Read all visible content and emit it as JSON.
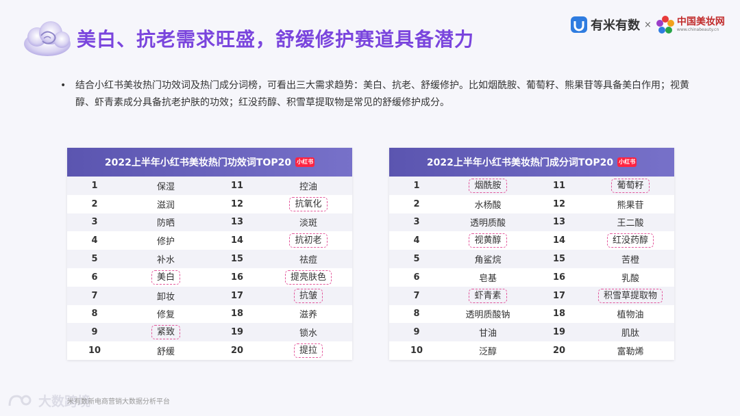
{
  "header": {
    "title": "美白、抗老需求旺盛，舒缓修护赛道具备潜力",
    "logo_youmi": "有米有数",
    "logo_sep": "×",
    "logo_chinabeauty": "中国美妆网",
    "logo_chinabeauty_url": "www.chinabeauty.cn"
  },
  "bullet": {
    "marker": "•",
    "text": "结合小红书美妆热门功效词及热门成分词榜，可看出三大需求趋势：美白、抗老、舒缓修护。比如烟酰胺、葡萄籽、熊果苷等具备美白作用；视黄醇、虾青素成分具备抗老护肤的功效；红没药醇、积雪草提取物是常见的舒缓修护成分。"
  },
  "efficacy_table": {
    "title": "2022上半年小红书美妆热门功效词TOP20",
    "badge": "小红书",
    "rows": [
      {
        "r1": "1",
        "w1": "保湿",
        "r2": "11",
        "w2": "控油"
      },
      {
        "r1": "2",
        "w1": "滋润",
        "r2": "12",
        "w2": "抗氧化"
      },
      {
        "r1": "3",
        "w1": "防晒",
        "r2": "13",
        "w2": "淡斑"
      },
      {
        "r1": "4",
        "w1": "修护",
        "r2": "14",
        "w2": "抗初老"
      },
      {
        "r1": "5",
        "w1": "补水",
        "r2": "15",
        "w2": "祛痘"
      },
      {
        "r1": "6",
        "w1": "美白",
        "r2": "16",
        "w2": "提亮肤色"
      },
      {
        "r1": "7",
        "w1": "卸妆",
        "r2": "17",
        "w2": "抗皱"
      },
      {
        "r1": "8",
        "w1": "修复",
        "r2": "18",
        "w2": "滋养"
      },
      {
        "r1": "9",
        "w1": "紧致",
        "r2": "19",
        "w2": "锁水"
      },
      {
        "r1": "10",
        "w1": "舒缓",
        "r2": "20",
        "w2": "提拉"
      }
    ]
  },
  "ingredient_table": {
    "title": "2022上半年小红书美妆热门成分词TOP20",
    "badge": "小红书",
    "rows": [
      {
        "r1": "1",
        "w1": "烟酰胺",
        "r2": "11",
        "w2": "葡萄籽"
      },
      {
        "r1": "2",
        "w1": "水杨酸",
        "r2": "12",
        "w2": "熊果苷"
      },
      {
        "r1": "3",
        "w1": "透明质酸",
        "r2": "13",
        "w2": "王二酸"
      },
      {
        "r1": "4",
        "w1": "视黄醇",
        "r2": "14",
        "w2": "红没药醇"
      },
      {
        "r1": "5",
        "w1": "角鲨烷",
        "r2": "15",
        "w2": "苦橙"
      },
      {
        "r1": "6",
        "w1": "皂基",
        "r2": "16",
        "w2": "乳酸"
      },
      {
        "r1": "7",
        "w1": "虾青素",
        "r2": "17",
        "w2": "积雪草提取物"
      },
      {
        "r1": "8",
        "w1": "透明质酸钠",
        "r2": "18",
        "w2": "植物油"
      },
      {
        "r1": "9",
        "w1": "甘油",
        "r2": "19",
        "w2": "肌肽"
      },
      {
        "r1": "10",
        "w1": "泛醇",
        "r2": "20",
        "w2": "富勒烯"
      }
    ]
  },
  "footer": {
    "watermark": "大数跨境",
    "source": "米有数新电商营销大数据分析平台"
  },
  "colors": {
    "title": "#7a45dd",
    "table_header": "#5b55b0",
    "highlight_border": "#e3559a",
    "badge": "#ff2442"
  }
}
